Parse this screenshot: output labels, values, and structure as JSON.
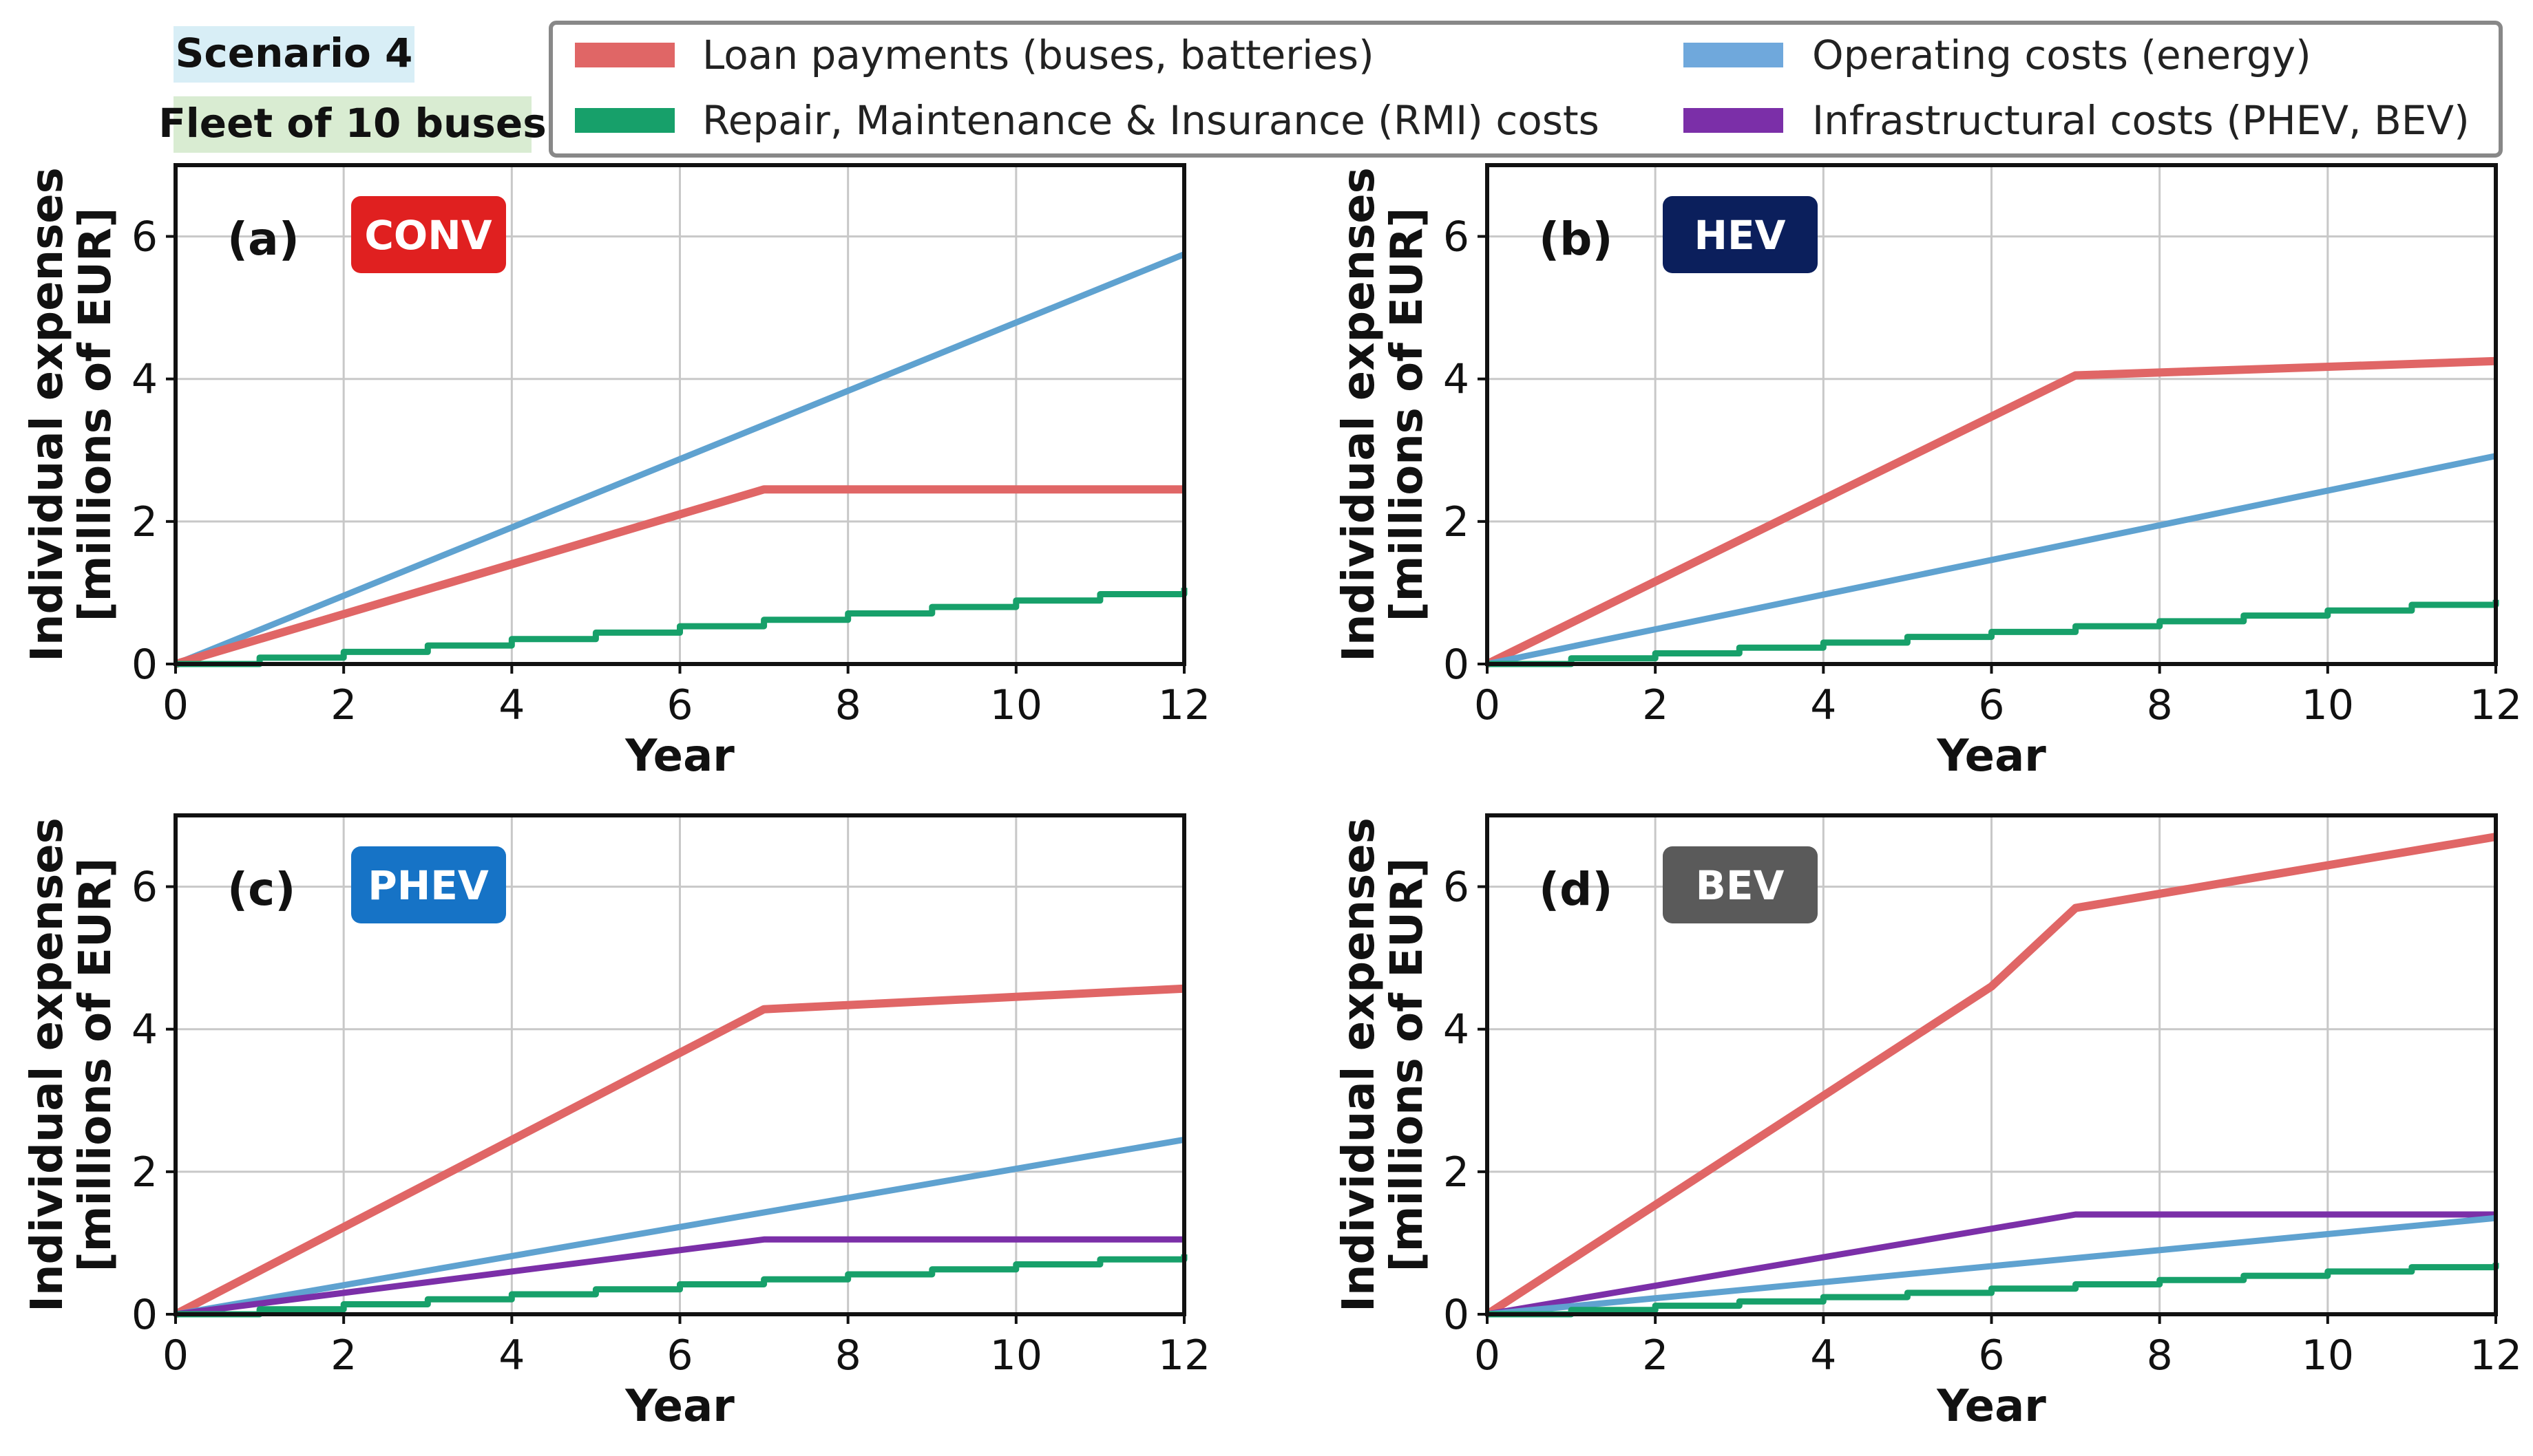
{
  "header": {
    "scenario": "Scenario 4",
    "fleet": "Fleet of 10 buses",
    "scenario_bg": "#d8eef6",
    "fleet_bg": "#d9ecd2"
  },
  "legend": [
    {
      "label": "Loan payments (buses, batteries)",
      "color": "#e06666"
    },
    {
      "label": "Operating costs (energy)",
      "color": "#6fa8dc"
    },
    {
      "label": "Repair, Maintenance & Insurance (RMI) costs",
      "color": "#17a06a"
    },
    {
      "label": "Infrastructural costs (PHEV, BEV)",
      "color": "#7b2fa8"
    }
  ],
  "colors": {
    "loan": "#e06666",
    "operating": "#5fa2d0",
    "rmi": "#17a06a",
    "infra": "#7b2fa8",
    "grid": "#c8c8c8"
  },
  "chart_data": [
    {
      "type": "line",
      "panel": "(a)",
      "badge": {
        "text": "CONV",
        "color": "#e02020"
      },
      "xlabel": "Year",
      "ylabel": "Individual expenses",
      "ylabel2": "[millions of EUR]",
      "xlim": [
        0,
        12
      ],
      "ylim": [
        0,
        7
      ],
      "xticks": [
        0,
        2,
        4,
        6,
        8,
        10,
        12
      ],
      "yticks": [
        0,
        2,
        4,
        6
      ],
      "series": [
        {
          "name": "Operating costs (energy)",
          "key": "operating",
          "x": [
            0,
            12
          ],
          "y": [
            0,
            5.75
          ]
        },
        {
          "name": "Loan payments (buses, batteries)",
          "key": "loan",
          "x": [
            0,
            7,
            12
          ],
          "y": [
            0,
            2.45,
            2.45
          ]
        },
        {
          "name": "Repair, Maintenance & Insurance (RMI) costs",
          "key": "rmi",
          "step": true,
          "x": [
            0,
            1,
            2,
            3,
            4,
            5,
            6,
            7,
            8,
            9,
            10,
            11,
            12
          ],
          "y": [
            0,
            0.09,
            0.17,
            0.26,
            0.35,
            0.44,
            0.53,
            0.62,
            0.71,
            0.8,
            0.89,
            0.98,
            1.07
          ]
        }
      ]
    },
    {
      "type": "line",
      "panel": "(b)",
      "badge": {
        "text": "HEV",
        "color": "#0b1f5c"
      },
      "xlabel": "Year",
      "ylabel": "Individual expenses",
      "ylabel2": "[millions of EUR]",
      "xlim": [
        0,
        12
      ],
      "ylim": [
        0,
        7
      ],
      "xticks": [
        0,
        2,
        4,
        6,
        8,
        10,
        12
      ],
      "yticks": [
        0,
        2,
        4,
        6
      ],
      "series": [
        {
          "name": "Loan payments (buses, batteries)",
          "key": "loan",
          "x": [
            0,
            7,
            12
          ],
          "y": [
            0,
            4.05,
            4.25
          ]
        },
        {
          "name": "Operating costs (energy)",
          "key": "operating",
          "x": [
            0,
            12
          ],
          "y": [
            0,
            2.92
          ]
        },
        {
          "name": "Repair, Maintenance & Insurance (RMI) costs",
          "key": "rmi",
          "step": true,
          "x": [
            0,
            1,
            2,
            3,
            4,
            5,
            6,
            7,
            8,
            9,
            10,
            11,
            12
          ],
          "y": [
            0,
            0.08,
            0.15,
            0.23,
            0.3,
            0.38,
            0.45,
            0.53,
            0.6,
            0.68,
            0.75,
            0.83,
            0.9
          ]
        }
      ]
    },
    {
      "type": "line",
      "panel": "(c)",
      "badge": {
        "text": "PHEV",
        "color": "#1673c6"
      },
      "xlabel": "Year",
      "ylabel": "Individual expenses",
      "ylabel2": "[millions of EUR]",
      "xlim": [
        0,
        12
      ],
      "ylim": [
        0,
        7
      ],
      "xticks": [
        0,
        2,
        4,
        6,
        8,
        10,
        12
      ],
      "yticks": [
        0,
        2,
        4,
        6
      ],
      "series": [
        {
          "name": "Loan payments (buses, batteries)",
          "key": "loan",
          "x": [
            0,
            7,
            12
          ],
          "y": [
            0,
            4.28,
            4.57
          ]
        },
        {
          "name": "Operating costs (energy)",
          "key": "operating",
          "x": [
            0,
            12
          ],
          "y": [
            0,
            2.45
          ]
        },
        {
          "name": "Infrastructural costs (PHEV, BEV)",
          "key": "infra",
          "x": [
            0,
            7,
            12
          ],
          "y": [
            0,
            1.05,
            1.05
          ]
        },
        {
          "name": "Repair, Maintenance & Insurance (RMI) costs",
          "key": "rmi",
          "step": true,
          "x": [
            0,
            1,
            2,
            3,
            4,
            5,
            6,
            7,
            8,
            9,
            10,
            11,
            12
          ],
          "y": [
            0,
            0.07,
            0.14,
            0.21,
            0.28,
            0.35,
            0.42,
            0.49,
            0.56,
            0.63,
            0.7,
            0.77,
            0.84
          ]
        }
      ]
    },
    {
      "type": "line",
      "panel": "(d)",
      "badge": {
        "text": "BEV",
        "color": "#5a5a5a"
      },
      "xlabel": "Year",
      "ylabel": "Individual expenses",
      "ylabel2": "[millions of EUR]",
      "xlim": [
        0,
        12
      ],
      "ylim": [
        0,
        7
      ],
      "xticks": [
        0,
        2,
        4,
        6,
        8,
        10,
        12
      ],
      "yticks": [
        0,
        2,
        4,
        6
      ],
      "series": [
        {
          "name": "Loan payments (buses, batteries)",
          "key": "loan",
          "x": [
            0,
            6,
            7,
            12
          ],
          "y": [
            0,
            4.6,
            5.7,
            6.7
          ]
        },
        {
          "name": "Infrastructural costs (PHEV, BEV)",
          "key": "infra",
          "x": [
            0,
            7,
            12
          ],
          "y": [
            0,
            1.4,
            1.4
          ]
        },
        {
          "name": "Operating costs (energy)",
          "key": "operating",
          "x": [
            0,
            12
          ],
          "y": [
            0,
            1.35
          ]
        },
        {
          "name": "Repair, Maintenance & Insurance (RMI) costs",
          "key": "rmi",
          "step": true,
          "x": [
            0,
            1,
            2,
            3,
            4,
            5,
            6,
            7,
            8,
            9,
            10,
            11,
            12
          ],
          "y": [
            0,
            0.06,
            0.12,
            0.18,
            0.24,
            0.3,
            0.36,
            0.42,
            0.48,
            0.54,
            0.6,
            0.66,
            0.72
          ]
        }
      ]
    }
  ]
}
